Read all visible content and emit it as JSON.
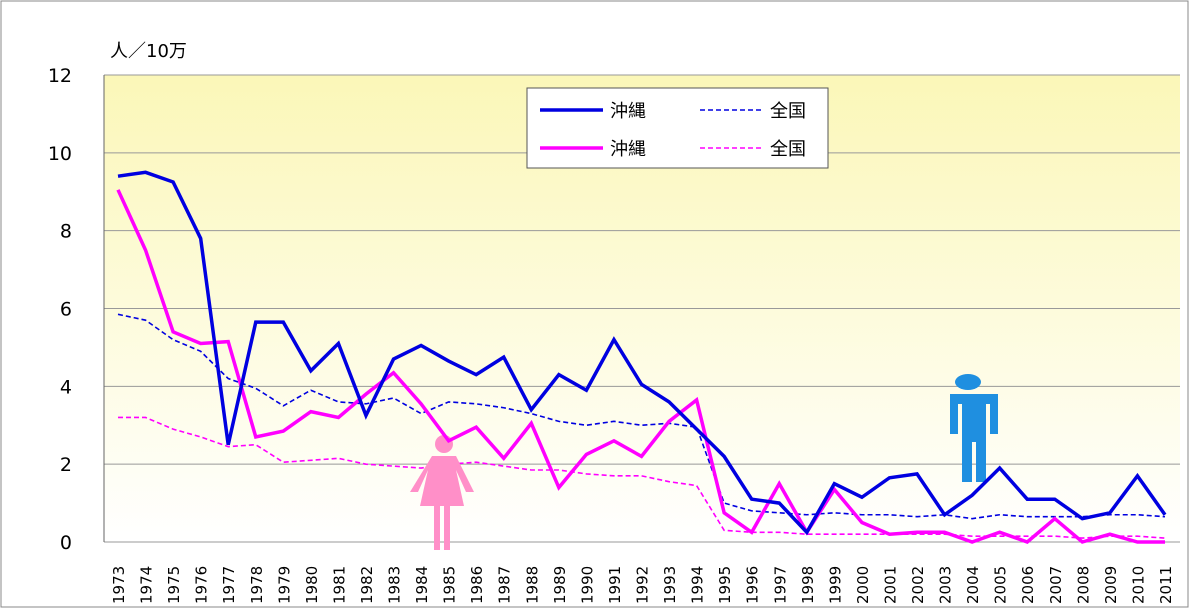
{
  "chart_data": {
    "type": "line",
    "y_label": "人／10万",
    "categories": [
      "1973",
      "1974",
      "1975",
      "1976",
      "1977",
      "1978",
      "1979",
      "1980",
      "1981",
      "1982",
      "1983",
      "1984",
      "1985",
      "1986",
      "1987",
      "1988",
      "1989",
      "1990",
      "1991",
      "1992",
      "1993",
      "1994",
      "1995",
      "1996",
      "1997",
      "1998",
      "1999",
      "2000",
      "2001",
      "2002",
      "2003",
      "2004",
      "2005",
      "2006",
      "2007",
      "2008",
      "2009",
      "2010",
      "2011"
    ],
    "series": [
      {
        "name": "沖縄",
        "color": "#0000e0",
        "dash": false,
        "values": [
          9.4,
          9.5,
          9.25,
          7.8,
          2.5,
          5.65,
          5.65,
          4.4,
          5.1,
          3.25,
          4.7,
          5.05,
          4.65,
          4.3,
          4.75,
          3.4,
          4.3,
          3.9,
          5.2,
          4.05,
          3.6,
          2.9,
          2.2,
          1.1,
          1.0,
          0.25,
          1.5,
          1.15,
          1.65,
          1.75,
          0.7,
          1.2,
          1.9,
          1.1,
          1.1,
          0.6,
          0.75,
          1.7,
          0.7
        ]
      },
      {
        "name": "全国",
        "color": "#0000e0",
        "dash": true,
        "values": [
          5.85,
          5.7,
          5.2,
          4.9,
          4.2,
          3.95,
          3.5,
          3.9,
          3.6,
          3.55,
          3.7,
          3.3,
          3.6,
          3.55,
          3.45,
          3.3,
          3.1,
          3.0,
          3.1,
          3.0,
          3.05,
          2.95,
          1.0,
          0.8,
          0.75,
          0.7,
          0.75,
          0.7,
          0.7,
          0.65,
          0.7,
          0.6,
          0.7,
          0.65,
          0.65,
          0.65,
          0.7,
          0.7,
          0.65
        ]
      },
      {
        "name": "沖縄",
        "color": "#ff00ff",
        "dash": false,
        "values": [
          9.05,
          7.5,
          5.4,
          5.1,
          5.15,
          2.7,
          2.85,
          3.35,
          3.2,
          3.8,
          4.35,
          3.55,
          2.6,
          2.95,
          2.15,
          3.05,
          1.4,
          2.25,
          2.6,
          2.2,
          3.1,
          3.65,
          0.75,
          0.25,
          1.5,
          0.25,
          1.35,
          0.5,
          0.2,
          0.25,
          0.25,
          0.0,
          0.25,
          0.0,
          0.6,
          0.0,
          0.2,
          0.0,
          0.0
        ]
      },
      {
        "name": "全国",
        "color": "#ff00ff",
        "dash": true,
        "values": [
          3.2,
          3.2,
          2.9,
          2.7,
          2.45,
          2.5,
          2.05,
          2.1,
          2.15,
          2.0,
          1.95,
          1.9,
          2.0,
          2.05,
          1.95,
          1.85,
          1.85,
          1.75,
          1.7,
          1.7,
          1.55,
          1.45,
          0.3,
          0.25,
          0.25,
          0.2,
          0.2,
          0.2,
          0.2,
          0.2,
          0.2,
          0.15,
          0.15,
          0.15,
          0.15,
          0.1,
          0.15,
          0.15,
          0.1
        ]
      }
    ],
    "ylim": [
      0,
      12
    ],
    "yticks": [
      0,
      2,
      4,
      6,
      8,
      10,
      12
    ],
    "grid": true
  }
}
